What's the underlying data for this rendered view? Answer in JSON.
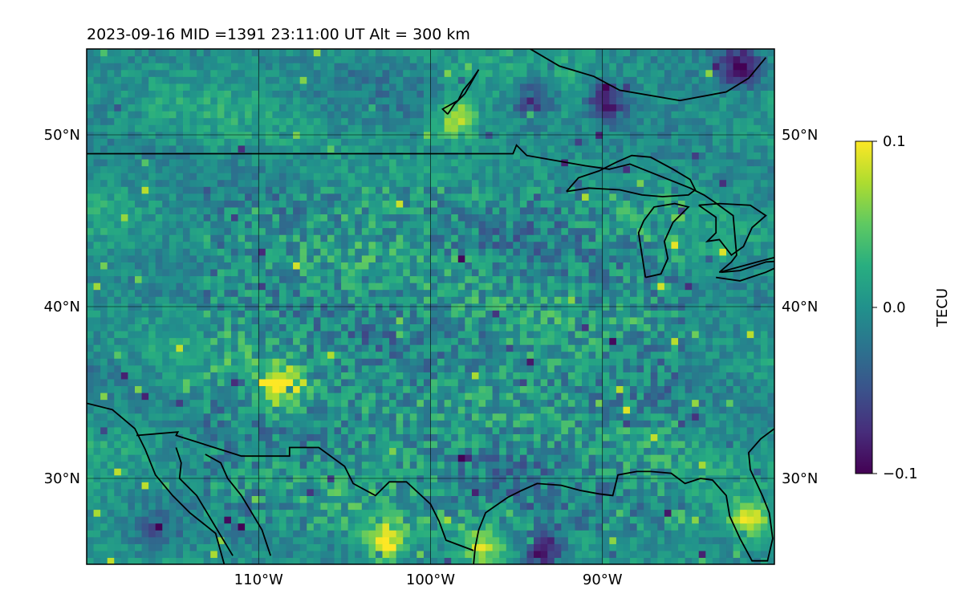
{
  "chart_data": {
    "type": "heatmap",
    "title": "2023-09-16  MID =1391    23:11:00  UT  Alt = 300 km",
    "projection": "equirectangular map",
    "x": {
      "label": "",
      "range": [
        -120,
        -80
      ],
      "ticks": [
        -110,
        -100,
        -90
      ],
      "tick_labels": [
        "110°W",
        "100°W",
        "90°W"
      ]
    },
    "y": {
      "label": "",
      "range": [
        25,
        55
      ],
      "ticks": [
        30,
        40,
        50
      ],
      "tick_labels": [
        "30°N",
        "40°N",
        "50°N"
      ]
    },
    "grid": true,
    "colorbar": {
      "label": "TECU",
      "min": -0.1,
      "max": 0.1,
      "ticks": [
        -0.1,
        0.0,
        0.1
      ],
      "tick_labels": [
        "−0.1",
        "0.0",
        "0.1"
      ],
      "colormap": "viridis"
    },
    "field": {
      "resolution_deg": 0.4,
      "description_values": "noisy TEC perturbation field, mostly near 0.0 with scattered ±0.1 extremes",
      "blobs": [
        {
          "lon": -93.5,
          "lat": 25.9,
          "value": -0.1
        },
        {
          "lon": -89.8,
          "lat": 52.0,
          "value": -0.09
        },
        {
          "lon": -94.0,
          "lat": 52.2,
          "value": -0.08
        },
        {
          "lon": -82.0,
          "lat": 54.0,
          "value": -0.09
        },
        {
          "lon": -98.5,
          "lat": 51.0,
          "value": 0.08
        },
        {
          "lon": -102.7,
          "lat": 26.2,
          "value": 0.1
        },
        {
          "lon": -81.5,
          "lat": 27.5,
          "value": 0.1
        },
        {
          "lon": -108.7,
          "lat": 35.4,
          "value": 0.1
        },
        {
          "lon": -97.0,
          "lat": 26.0,
          "value": 0.07
        },
        {
          "lon": -116.0,
          "lat": 27.0,
          "value": -0.04
        }
      ]
    },
    "coastlines": true
  }
}
